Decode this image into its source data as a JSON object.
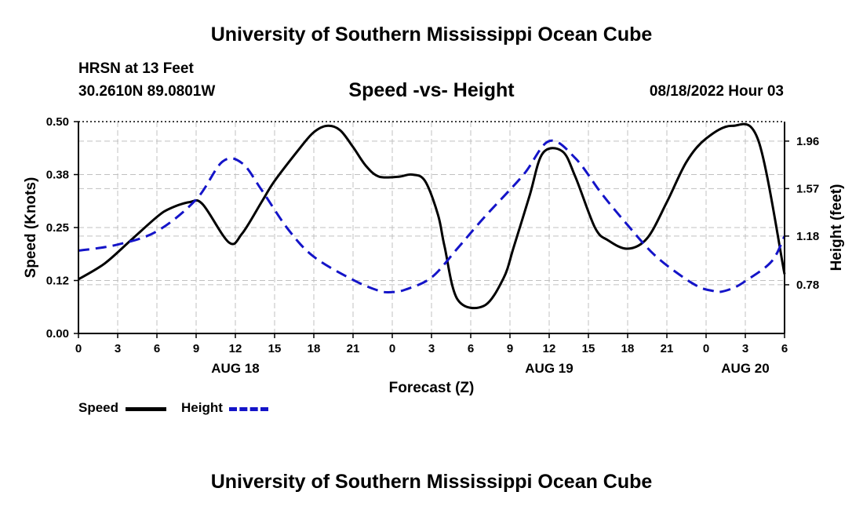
{
  "header": {
    "title": "University of Southern Mississippi Ocean Cube",
    "station": "HRSN at 13 Feet",
    "coords": "30.2610N  89.0801W",
    "subtitle": "Speed -vs- Height",
    "datetime": "08/18/2022 Hour 03"
  },
  "footer": {
    "title": "University of Southern Mississippi Ocean Cube"
  },
  "legend": {
    "speed_label": "Speed",
    "height_label": "Height"
  },
  "chart_data": {
    "type": "line",
    "title": "Speed -vs- Height",
    "xlabel": "Forecast (Z)",
    "ylabel": "Speed (Knots)",
    "y2label": "Height (feet)",
    "x_unit": "hours since Aug 18 00Z",
    "xlim": [
      -3,
      51
    ],
    "ylim": [
      0,
      0.5
    ],
    "y2lim": [
      0.38,
      2.12
    ],
    "x_ticks": [
      {
        "x": -3,
        "label": "0"
      },
      {
        "x": 0,
        "label": "3"
      },
      {
        "x": 3,
        "label": "6"
      },
      {
        "x": 6,
        "label": "9"
      },
      {
        "x": 9,
        "label": "12"
      },
      {
        "x": 12,
        "label": "15"
      },
      {
        "x": 15,
        "label": "18"
      },
      {
        "x": 18,
        "label": "21"
      },
      {
        "x": 21,
        "label": "0"
      },
      {
        "x": 24,
        "label": "3"
      },
      {
        "x": 27,
        "label": "6"
      },
      {
        "x": 30,
        "label": "9"
      },
      {
        "x": 33,
        "label": "12"
      },
      {
        "x": 36,
        "label": "15"
      },
      {
        "x": 39,
        "label": "18"
      },
      {
        "x": 42,
        "label": "21"
      },
      {
        "x": 45,
        "label": "0"
      },
      {
        "x": 48,
        "label": "3"
      },
      {
        "x": 51,
        "label": "6"
      }
    ],
    "date_labels": [
      {
        "x": 9,
        "label": "AUG 18"
      },
      {
        "x": 33,
        "label": "AUG 19"
      },
      {
        "x": 48,
        "label": "AUG 20"
      }
    ],
    "y_ticks": [
      {
        "v": 0.0,
        "label": "0.00"
      },
      {
        "v": 0.125,
        "label": "0.12"
      },
      {
        "v": 0.25,
        "label": "0.25"
      },
      {
        "v": 0.375,
        "label": "0.38"
      },
      {
        "v": 0.5,
        "label": "0.50"
      }
    ],
    "y2_ticks": [
      {
        "v": 0.78,
        "label": "0.78"
      },
      {
        "v": 1.18,
        "label": "1.18"
      },
      {
        "v": 1.57,
        "label": "1.57"
      },
      {
        "v": 1.96,
        "label": "1.96"
      }
    ],
    "series": [
      {
        "name": "Speed",
        "axis": "left",
        "color": "#000000",
        "style": "solid",
        "x": [
          -3,
          -1,
          1,
          3,
          4,
          5.5,
          6.5,
          8.5,
          9.5,
          11,
          12,
          14,
          15,
          16,
          17,
          18,
          19,
          20,
          21.5,
          22.5,
          23.5,
          24.5,
          25,
          26,
          28,
          29.5,
          30.3,
          31.5,
          32.5,
          34,
          35,
          36.5,
          37.5,
          39,
          40.5,
          42,
          43.5,
          45,
          47,
          49,
          51
        ],
        "values": [
          0.128,
          0.165,
          0.22,
          0.275,
          0.295,
          0.31,
          0.305,
          0.215,
          0.235,
          0.31,
          0.36,
          0.44,
          0.475,
          0.49,
          0.48,
          0.44,
          0.395,
          0.37,
          0.37,
          0.375,
          0.36,
          0.28,
          0.205,
          0.08,
          0.065,
          0.13,
          0.205,
          0.325,
          0.425,
          0.43,
          0.37,
          0.25,
          0.22,
          0.2,
          0.225,
          0.31,
          0.405,
          0.46,
          0.49,
          0.455,
          0.14
        ]
      },
      {
        "name": "Height",
        "axis": "right",
        "color": "#1414c8",
        "style": "dashed",
        "x": [
          -3,
          0,
          3,
          6,
          8,
          9.5,
          11,
          13,
          15,
          18,
          20,
          21,
          22,
          24,
          26,
          28,
          31,
          33,
          35,
          37,
          39,
          41,
          43,
          44.5,
          45.5,
          46,
          47,
          48,
          50,
          51
        ],
        "values": [
          1.06,
          1.11,
          1.22,
          1.48,
          1.79,
          1.78,
          1.56,
          1.24,
          1.01,
          0.82,
          0.73,
          0.72,
          0.74,
          0.84,
          1.08,
          1.33,
          1.68,
          1.96,
          1.82,
          1.53,
          1.27,
          1.03,
          0.86,
          0.76,
          0.73,
          0.72,
          0.75,
          0.81,
          0.97,
          1.18
        ]
      }
    ]
  }
}
